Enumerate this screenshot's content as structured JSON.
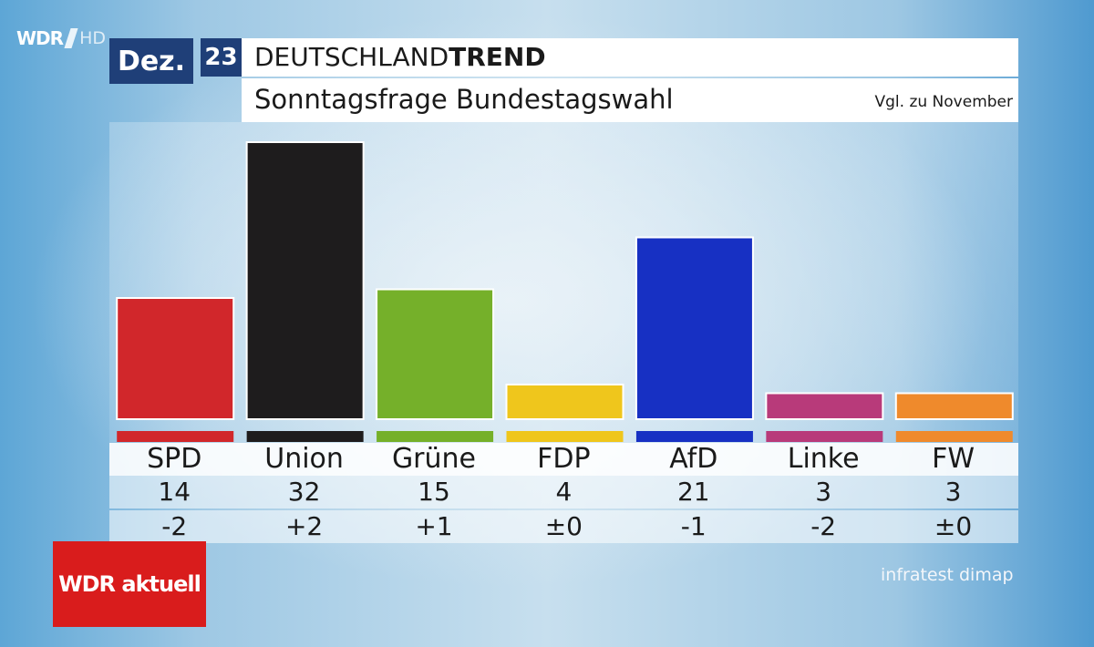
{
  "broadcaster": {
    "logo_text": "WDR",
    "hd_text": "HD"
  },
  "header": {
    "month": "Dez.",
    "year": "23",
    "title_regular": "DEUTSCHLAND",
    "title_bold": "TREND",
    "subtitle": "Sonntagsfrage Bundestagswahl",
    "comparison_note": "Vgl. zu November"
  },
  "chart_data": {
    "type": "bar",
    "categories": [
      "SPD",
      "Union",
      "Grüne",
      "FDP",
      "AfD",
      "Linke",
      "FW"
    ],
    "values": [
      14,
      32,
      15,
      4,
      21,
      3,
      3
    ],
    "changes": [
      "-2",
      "+2",
      "+1",
      "±0",
      "-1",
      "-2",
      "±0"
    ],
    "colors": [
      "#d1272b",
      "#1e1c1d",
      "#75b02a",
      "#efc61c",
      "#1730c3",
      "#b83a7a",
      "#ef8a2c"
    ],
    "ylim": [
      0,
      32
    ]
  },
  "footer": {
    "program_logo": "WDR aktuell",
    "source": "infratest dimap"
  }
}
